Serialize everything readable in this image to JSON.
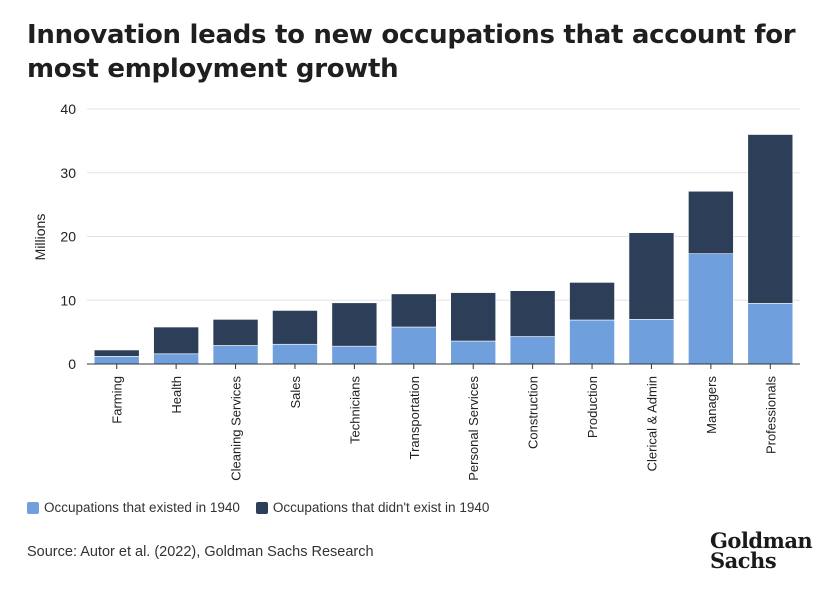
{
  "title": "Innovation leads to new occupations that account for most employment growth",
  "source": "Source: Autor et al. (2022), Goldman Sachs Research",
  "logo": {
    "line1": "Goldman",
    "line2": "Sachs"
  },
  "colors": {
    "existed": "#6f9fdc",
    "new": "#2c3e58",
    "grid": "#e3e3e3",
    "axis": "#333333"
  },
  "chart_data": {
    "type": "bar",
    "stacked": true,
    "categories": [
      "Farming",
      "Health",
      "Cleaning Services",
      "Sales",
      "Technicians",
      "Transportation",
      "Personal Services",
      "Construction",
      "Production",
      "Clerical & Admin",
      "Managers",
      "Professionals"
    ],
    "series": [
      {
        "name": "Occupations that existed in 1940",
        "values": [
          1.2,
          1.6,
          2.9,
          3.1,
          2.8,
          5.8,
          3.6,
          4.3,
          6.9,
          7.0,
          17.3,
          9.5
        ]
      },
      {
        "name": "Occupations that didn't exist in 1940",
        "values": [
          1.0,
          4.2,
          4.1,
          5.3,
          6.8,
          5.2,
          7.6,
          7.2,
          5.9,
          13.6,
          9.8,
          26.5
        ]
      }
    ],
    "ylabel": "Millions",
    "xlabel": "",
    "ylim": [
      0,
      40
    ],
    "yticks": [
      0,
      10,
      20,
      30,
      40
    ],
    "grid": true,
    "legend_position": "bottom-left"
  }
}
